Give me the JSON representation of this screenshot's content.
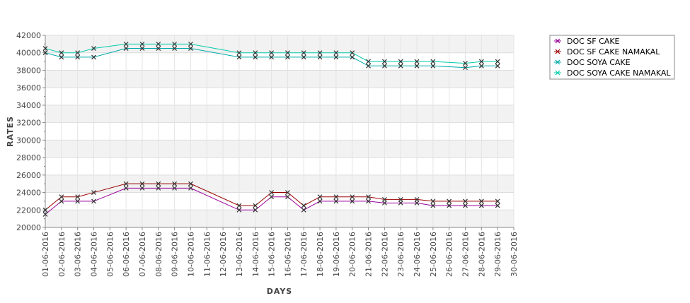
{
  "chart_data": {
    "type": "line",
    "xlabel": "DAYS",
    "ylabel": "RATES",
    "ylim": [
      20000,
      42000
    ],
    "yticks": [
      20000,
      22000,
      24000,
      26000,
      28000,
      30000,
      32000,
      34000,
      36000,
      38000,
      40000,
      42000
    ],
    "categories": [
      "01-06-2016",
      "02-06-2016",
      "03-06-2016",
      "04-06-2016",
      "05-06-2016",
      "06-06-2016",
      "07-06-2016",
      "08-06-2016",
      "09-06-2016",
      "10-06-2016",
      "11-06-2016",
      "12-06-2016",
      "13-06-2016",
      "14-06-2016",
      "15-06-2016",
      "16-06-2016",
      "17-06-2016",
      "18-06-2016",
      "19-06-2016",
      "20-06-2016",
      "21-06-2016",
      "22-06-2016",
      "23-06-2016",
      "24-06-2016",
      "25-06-2016",
      "26-06-2016",
      "27-06-2016",
      "28-06-2016",
      "29-06-2016",
      "30-06-2016"
    ],
    "grid": true,
    "legend_position": "top-right",
    "series": [
      {
        "name": "DOC SF CAKE",
        "color": "#990099",
        "values": [
          21500,
          23000,
          23000,
          23000,
          null,
          24500,
          24500,
          24500,
          24500,
          24500,
          null,
          null,
          22000,
          22000,
          23500,
          23500,
          22000,
          23000,
          23000,
          23000,
          23000,
          22800,
          22800,
          22800,
          22500,
          22500,
          22500,
          22500,
          22500,
          null
        ]
      },
      {
        "name": "DOC SF CAKE NAMAKAL",
        "color": "#990000",
        "values": [
          22000,
          23500,
          23500,
          24000,
          null,
          25000,
          25000,
          25000,
          25000,
          25000,
          null,
          null,
          22500,
          22500,
          24000,
          24000,
          22500,
          23500,
          23500,
          23500,
          23500,
          23200,
          23200,
          23200,
          23000,
          23000,
          23000,
          23000,
          23000,
          null
        ]
      },
      {
        "name": "DOC SOYA CAKE",
        "color": "#00aaaa",
        "values": [
          40000,
          39500,
          39500,
          39500,
          null,
          40500,
          40500,
          40500,
          40500,
          40500,
          null,
          null,
          39500,
          39500,
          39500,
          39500,
          39500,
          39500,
          39500,
          39500,
          38500,
          38500,
          38500,
          38500,
          38500,
          null,
          38300,
          38500,
          38500,
          null
        ]
      },
      {
        "name": "DOC SOYA CAKE NAMAKAL",
        "color": "#00ccaa",
        "values": [
          40500,
          40000,
          40000,
          40500,
          null,
          41000,
          41000,
          41000,
          41000,
          41000,
          null,
          null,
          40000,
          40000,
          40000,
          40000,
          40000,
          40000,
          40000,
          40000,
          39000,
          39000,
          39000,
          39000,
          39000,
          null,
          38800,
          39000,
          39000,
          null
        ]
      }
    ]
  }
}
